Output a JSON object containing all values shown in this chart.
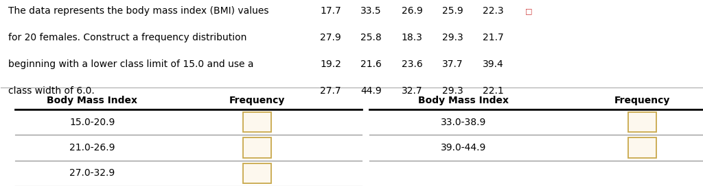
{
  "description_lines": [
    "The data represents the body mass index (BMI) values",
    "for 20 females. Construct a frequency distribution",
    "beginning with a lower class limit of 15.0 and use a",
    "class width of 6.0."
  ],
  "data_grid": [
    [
      "17.7",
      "33.5",
      "26.9",
      "25.9",
      "22.3"
    ],
    [
      "27.9",
      "25.8",
      "18.3",
      "29.3",
      "21.7"
    ],
    [
      "19.2",
      "21.6",
      "23.6",
      "37.7",
      "39.4"
    ],
    [
      "27.7",
      "44.9",
      "32.7",
      "29.3",
      "22.1"
    ]
  ],
  "table_left_headers": [
    "Body Mass Index",
    "Frequency"
  ],
  "table_right_headers": [
    "Body Mass Index",
    "Frequency"
  ],
  "left_rows": [
    "15.0-20.9",
    "21.0-26.9",
    "27.0-32.9"
  ],
  "right_rows": [
    "33.0-38.9",
    "39.0-44.9"
  ],
  "bg_color": "#ffffff",
  "header_line_color": "#000000",
  "row_line_color": "#888888",
  "sep_line_color": "#aaaaaa",
  "box_edge_color": "#c8a84b",
  "box_face_color": "#fdf8ee",
  "text_color": "#000000",
  "red_icon_color": "#cc3333",
  "header_fontsize": 10,
  "body_fontsize": 10,
  "desc_fontsize": 10
}
